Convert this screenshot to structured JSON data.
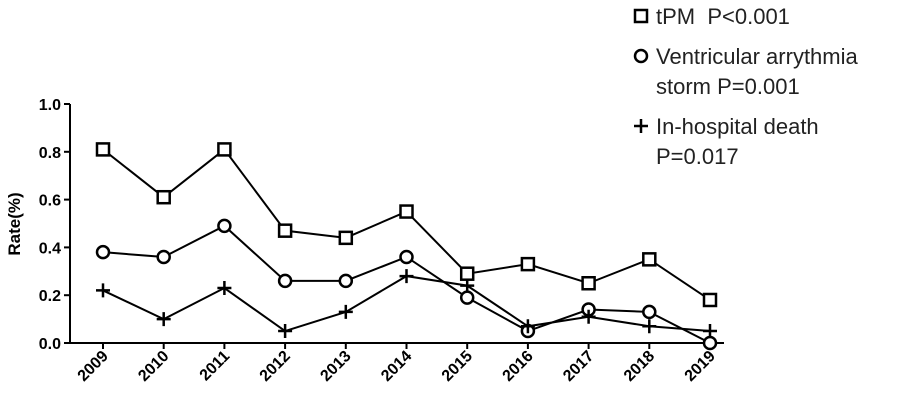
{
  "chart_data": {
    "type": "line",
    "y_label": "Rate(%)",
    "categories": [
      "2009",
      "2010",
      "2011",
      "2012",
      "2013",
      "2014",
      "2015",
      "2016",
      "2017",
      "2018",
      "2019"
    ],
    "ylim": [
      0,
      1
    ],
    "yticks": [
      {
        "value": 0,
        "label": "0.0"
      },
      0.2,
      0.4,
      0.6,
      0.8,
      {
        "value": 1,
        "label": "1.0"
      }
    ],
    "grid": false,
    "legend": "top-right",
    "series": [
      {
        "name": "tPM  P<0.001",
        "color": "#000000",
        "marker": "square",
        "values": [
          0.81,
          0.61,
          0.81,
          0.47,
          0.44,
          0.55,
          0.29,
          0.33,
          0.25,
          0.35,
          0.18
        ]
      },
      {
        "name": "Ventricular arrythmia storm P=0.001",
        "color": "#000000",
        "marker": "circle",
        "values": [
          0.38,
          0.36,
          0.49,
          0.26,
          0.26,
          0.36,
          0.19,
          0.05,
          0.14,
          0.13,
          0.0
        ]
      },
      {
        "name": "In-hospital death P=0.017",
        "color": "#000000",
        "marker": "plus",
        "values": [
          0.22,
          0.1,
          0.23,
          0.05,
          0.13,
          0.28,
          0.24,
          0.07,
          0.11,
          0.07,
          0.05
        ]
      }
    ]
  }
}
